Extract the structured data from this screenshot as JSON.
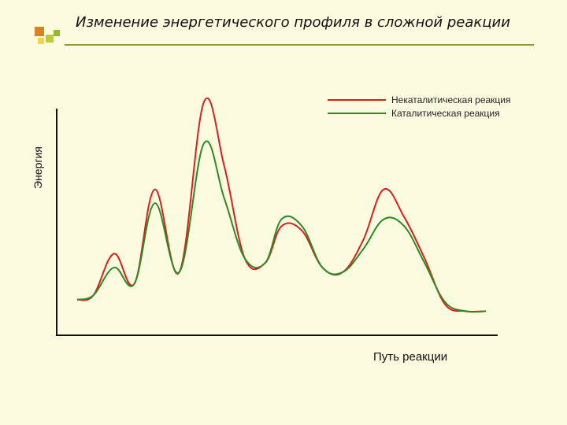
{
  "title": "Изменение энергетического профиля в сложной реакции",
  "chart_data": {
    "type": "line",
    "xlabel": "Путь реакции",
    "ylabel": "Энергия",
    "xlim": [
      0,
      100
    ],
    "ylim": [
      0,
      100
    ],
    "grid": false,
    "legend_position": "top-right",
    "series": [
      {
        "name": "Некаталитическая реакция",
        "color": "#dd1e1e",
        "x": [
          0,
          4,
          9,
          14,
          19,
          25,
          31,
          36,
          41,
          46,
          50,
          55,
          60,
          65,
          70,
          75,
          80,
          85,
          90,
          95,
          100
        ],
        "y": [
          10,
          12,
          30,
          17,
          58,
          22,
          96,
          68,
          28,
          26,
          42,
          40,
          24,
          22,
          36,
          58,
          46,
          28,
          8,
          5,
          5
        ]
      },
      {
        "name": "Каталитическая реакция",
        "color": "#2c8a22",
        "x": [
          0,
          4,
          9,
          14,
          19,
          25,
          31,
          36,
          41,
          46,
          50,
          55,
          60,
          65,
          70,
          75,
          80,
          85,
          90,
          95,
          100
        ],
        "y": [
          10,
          12,
          24,
          17,
          52,
          22,
          78,
          54,
          28,
          26,
          45,
          42,
          24,
          22,
          32,
          45,
          42,
          26,
          9,
          5,
          5
        ]
      }
    ]
  },
  "colors": {
    "background": "#fbfbdf",
    "title_rule": "#8e9a3c",
    "logo": [
      "#e27d25",
      "#b9cd3a",
      "#f3d24a",
      "#93b830"
    ]
  }
}
